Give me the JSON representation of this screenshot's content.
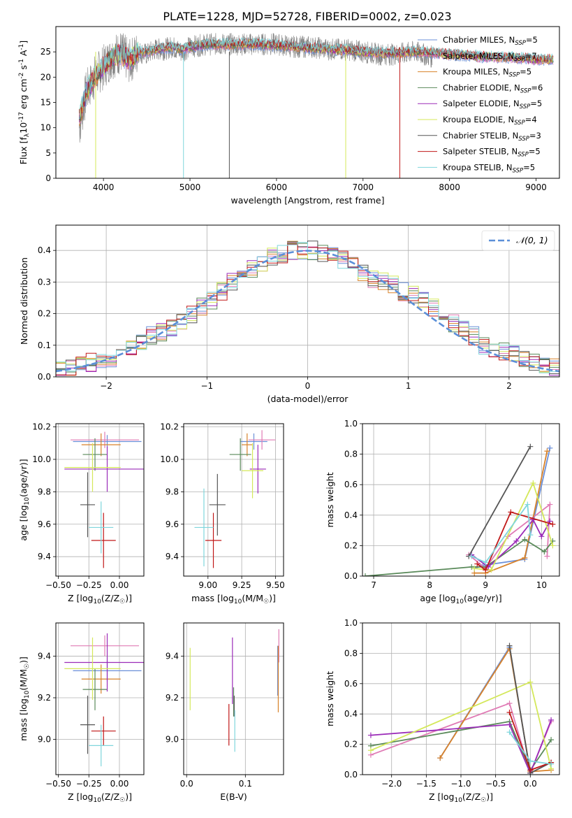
{
  "figure": {
    "title": "PLATE=1228, MJD=52728, FIBERID=0002, z=0.023"
  },
  "legend_series": [
    {
      "name": "Chabrier MILES, N$_{SSP}$=5",
      "base": "Chabrier MILES, N",
      "sub": "SSP",
      "tail": "=5",
      "color": "#6a8fd8"
    },
    {
      "name": "Salpeter MILES, N$_{SSP}$=7",
      "base": "Salpeter MILES, N",
      "sub": "SSP",
      "tail": "=7",
      "color": "#e07bb5"
    },
    {
      "name": "Kroupa MILES, N$_{SSP}$=5",
      "base": "Kroupa MILES, N",
      "sub": "SSP",
      "tail": "=5",
      "color": "#d8822a"
    },
    {
      "name": "Chabrier ELODIE, N$_{SSP}$=6",
      "base": "Chabrier ELODIE, N",
      "sub": "SSP",
      "tail": "=6",
      "color": "#5a8a5a"
    },
    {
      "name": "Salpeter ELODIE, N$_{SSP}$=5",
      "base": "Salpeter ELODIE, N",
      "sub": "SSP",
      "tail": "=5",
      "color": "#9b2bb8"
    },
    {
      "name": "Kroupa ELODIE, N$_{SSP}$=4",
      "base": "Kroupa ELODIE, N",
      "sub": "SSP",
      "tail": "=4",
      "color": "#d4e85a"
    },
    {
      "name": "Chabrier STELIB, N$_{SSP}$=3",
      "base": "Chabrier STELIB, N",
      "sub": "SSP",
      "tail": "=3",
      "color": "#555555"
    },
    {
      "name": "Salpeter STELIB, N$_{SSP}$=5",
      "base": "Salpeter STELIB, N",
      "sub": "SSP",
      "tail": "=5",
      "color": "#c01818"
    },
    {
      "name": "Kroupa STELIB, N$_{SSP}$=5",
      "base": "Kroupa STELIB, N",
      "sub": "SSP",
      "tail": "=5",
      "color": "#7fd6dc"
    }
  ],
  "chart_data": [
    {
      "id": "spectrum",
      "type": "line",
      "title": "PLATE=1228, MJD=52728, FIBERID=0002, z=0.023",
      "xlabel": "wavelength [Angstrom, rest frame]",
      "ylabel": "Flux [f$_\\lambda$10$^{-17}$ erg cm$^{-2}$ s$^{-1}$ A$^{-1}$]",
      "xlim": [
        3450,
        9270
      ],
      "ylim": [
        0,
        30
      ],
      "xticks": [
        4000,
        5000,
        6000,
        7000,
        8000,
        9000
      ],
      "yticks": [
        0,
        5,
        10,
        15,
        20,
        25
      ],
      "grid": false,
      "legend": "upper right",
      "data_color": "#808080",
      "observed": {
        "x": [
          3720,
          3800,
          3900,
          4000,
          4100,
          4200,
          4300,
          4400,
          4500,
          4600,
          4700,
          4800,
          4900,
          5000,
          5200,
          5400,
          5600,
          5800,
          6000,
          6200,
          6400,
          6600,
          6800,
          7000,
          7200,
          7400,
          7600,
          7800
        ],
        "y": [
          10,
          17,
          20,
          22,
          24,
          25,
          23,
          25,
          24.5,
          25.5,
          25.5,
          26,
          25,
          26,
          26.5,
          26.5,
          26.5,
          26.5,
          26.5,
          26,
          26,
          25.5,
          25.5,
          25,
          24.5,
          24.5,
          25,
          24
        ]
      },
      "model": {
        "x": [
          3720,
          3800,
          3900,
          4000,
          4100,
          4200,
          4300,
          4400,
          4500,
          4600,
          4700,
          4800,
          4900,
          5000,
          5200,
          5400,
          5600,
          5800,
          6000,
          6200,
          6400,
          6600,
          6800,
          7000,
          7200,
          7400,
          7600,
          7800,
          8000,
          8200,
          8400,
          8600,
          8800,
          9000,
          9200
        ],
        "y": [
          12,
          17,
          20,
          22,
          24,
          24.5,
          23.5,
          25,
          25,
          25.5,
          25.8,
          26,
          25.5,
          26,
          26.5,
          26.5,
          26.5,
          26.5,
          26.3,
          26,
          25.8,
          25.5,
          25.3,
          25,
          24.8,
          24.8,
          25,
          24.8,
          24.5,
          24.3,
          24,
          24,
          23.8,
          23.5,
          23.5
        ]
      },
      "drop_lines": [
        {
          "series": "Kroupa STELIB",
          "x": 4925
        },
        {
          "series": "Chabrier STELIB",
          "x": 5455
        },
        {
          "series": "Kroupa ELODIE",
          "x": 6800
        },
        {
          "series": "Salpeter STELIB",
          "x": 7425
        },
        {
          "series": "Kroupa ELODIE",
          "x": 3910
        }
      ]
    },
    {
      "id": "residuals",
      "type": "histogram",
      "xlabel": "(data-model)/error",
      "ylabel": "Normed distribution",
      "xlim": [
        -2.5,
        2.5
      ],
      "ylim": [
        0,
        0.48
      ],
      "xticks": [
        -2,
        -1,
        0,
        1,
        2
      ],
      "yticks": [
        0.0,
        0.1,
        0.2,
        0.3,
        0.4
      ],
      "grid": true,
      "legend": "upper right",
      "bin_edges": [
        -2.5,
        -2.4,
        -2.3,
        -2.2,
        -2.1,
        -2.0,
        -1.9,
        -1.8,
        -1.7,
        -1.6,
        -1.5,
        -1.4,
        -1.3,
        -1.2,
        -1.1,
        -1.0,
        -0.9,
        -0.8,
        -0.7,
        -0.6,
        -0.5,
        -0.4,
        -0.3,
        -0.2,
        -0.1,
        0.0,
        0.1,
        0.2,
        0.3,
        0.4,
        0.5,
        0.6,
        0.7,
        0.8,
        0.9,
        1.0,
        1.1,
        1.2,
        1.3,
        1.4,
        1.5,
        1.6,
        1.7,
        1.8,
        1.9,
        2.0,
        2.1,
        2.2,
        2.3,
        2.4,
        2.5
      ],
      "reference_curve": {
        "name": "$\\mathcal{N}(0,1)$",
        "label": "𝒩(0, 1)",
        "color": "#5b8fd8",
        "style": "dashed"
      },
      "hist_profile": [
        0.025,
        0.03,
        0.04,
        0.045,
        0.05,
        0.06,
        0.07,
        0.09,
        0.11,
        0.13,
        0.14,
        0.15,
        0.17,
        0.2,
        0.22,
        0.24,
        0.27,
        0.3,
        0.32,
        0.34,
        0.36,
        0.38,
        0.39,
        0.4,
        0.4,
        0.4,
        0.39,
        0.38,
        0.37,
        0.35,
        0.33,
        0.31,
        0.3,
        0.29,
        0.27,
        0.26,
        0.24,
        0.22,
        0.2,
        0.17,
        0.15,
        0.13,
        0.1,
        0.09,
        0.08,
        0.07,
        0.06,
        0.05,
        0.04,
        0.03
      ]
    },
    {
      "id": "age-vs-Z",
      "type": "scatter",
      "xlabel": "Z [log$_{10}$(Z/Z$_\\odot$)]",
      "ylabel": "age  [log$_{10}$(age/yr)]",
      "xlim": [
        -0.52,
        0.2
      ],
      "ylim": [
        9.28,
        10.22
      ],
      "xticks": [
        -0.5,
        -0.25,
        0.0
      ],
      "yticks": [
        9.4,
        9.6,
        9.8,
        10.0,
        10.2
      ],
      "grid": true,
      "points": [
        {
          "series": "Chabrier MILES",
          "x": -0.1,
          "y": 10.11,
          "xerr": 0.28,
          "yerr": 0.04
        },
        {
          "series": "Salpeter MILES",
          "x": -0.12,
          "y": 10.12,
          "xerr": 0.28,
          "yerr": 0.05
        },
        {
          "series": "Kroupa MILES",
          "x": -0.15,
          "y": 10.09,
          "xerr": 0.16,
          "yerr": 0.07
        },
        {
          "series": "Chabrier ELODIE",
          "x": -0.2,
          "y": 10.03,
          "xerr": 0.1,
          "yerr": 0.1
        },
        {
          "series": "Salpeter ELODIE",
          "x": -0.1,
          "y": 9.94,
          "xerr": 0.35,
          "yerr": 0.14
        },
        {
          "series": "Kroupa ELODIE",
          "x": -0.22,
          "y": 9.95,
          "xerr": 0.23,
          "yerr": 0.15
        },
        {
          "series": "Chabrier STELIB",
          "x": -0.26,
          "y": 9.72,
          "xerr": 0.06,
          "yerr": 0.2
        },
        {
          "series": "Salpeter STELIB",
          "x": -0.13,
          "y": 9.5,
          "xerr": 0.1,
          "yerr": 0.17
        },
        {
          "series": "Kroupa STELIB",
          "x": -0.15,
          "y": 9.58,
          "xerr": 0.1,
          "yerr": 0.16
        }
      ]
    },
    {
      "id": "age-vs-mass",
      "type": "scatter",
      "xlabel": "mass [log$_{10}$(M/M$_\\odot$)]",
      "ylabel": "",
      "xlim": [
        8.82,
        9.56
      ],
      "ylim": [
        9.28,
        10.22
      ],
      "xticks": [
        9.0,
        9.25,
        9.5
      ],
      "yticks": [
        9.4,
        9.6,
        9.8,
        10.0,
        10.2
      ],
      "grid": true,
      "points": [
        {
          "series": "Chabrier MILES",
          "x": 9.34,
          "y": 10.11,
          "xerr": 0.1,
          "yerr": 0.05
        },
        {
          "series": "Salpeter MILES",
          "x": 9.4,
          "y": 10.12,
          "xerr": 0.1,
          "yerr": 0.06
        },
        {
          "series": "Kroupa MILES",
          "x": 9.29,
          "y": 10.09,
          "xerr": 0.04,
          "yerr": 0.07
        },
        {
          "series": "Chabrier ELODIE",
          "x": 9.24,
          "y": 10.03,
          "xerr": 0.08,
          "yerr": 0.1
        },
        {
          "series": "Salpeter ELODIE",
          "x": 9.37,
          "y": 9.94,
          "xerr": 0.06,
          "yerr": 0.15
        },
        {
          "series": "Kroupa ELODIE",
          "x": 9.33,
          "y": 9.93,
          "xerr": 0.08,
          "yerr": 0.17
        },
        {
          "series": "Chabrier STELIB",
          "x": 9.07,
          "y": 9.72,
          "xerr": 0.06,
          "yerr": 0.19
        },
        {
          "series": "Salpeter STELIB",
          "x": 9.04,
          "y": 9.5,
          "xerr": 0.06,
          "yerr": 0.17
        },
        {
          "series": "Kroupa STELIB",
          "x": 8.97,
          "y": 9.58,
          "xerr": 0.07,
          "yerr": 0.24
        }
      ]
    },
    {
      "id": "weight-vs-age",
      "type": "line",
      "xlabel": "age  [log$_{10}$(age/yr)]",
      "ylabel": "mass weight",
      "xlim": [
        6.8,
        10.32
      ],
      "ylim": [
        0,
        1.0
      ],
      "xticks": [
        7,
        8,
        9,
        10
      ],
      "yticks": [
        0.0,
        0.2,
        0.4,
        0.6,
        0.8,
        1.0
      ],
      "grid": true,
      "series": [
        {
          "name": "Chabrier MILES",
          "x": [
            8.8,
            8.95,
            9.7,
            10.15
          ],
          "y": [
            0.05,
            0.07,
            0.11,
            0.84
          ]
        },
        {
          "name": "Salpeter MILES",
          "x": [
            8.7,
            9.0,
            9.4,
            10.15,
            10.1
          ],
          "y": [
            0.14,
            0.05,
            0.26,
            0.47,
            0.13
          ]
        },
        {
          "name": "Kroupa MILES",
          "x": [
            8.8,
            9.0,
            9.7,
            10.1
          ],
          "y": [
            0.02,
            0.02,
            0.12,
            0.82
          ]
        },
        {
          "name": "Chabrier ELODIE",
          "x": [
            6.85,
            8.75,
            9.0,
            9.7,
            10.05,
            10.2
          ],
          "y": [
            0.0,
            0.06,
            0.06,
            0.24,
            0.16,
            0.23
          ]
        },
        {
          "name": "Salpeter ELODIE",
          "x": [
            8.75,
            9.05,
            9.55,
            9.85,
            10.0,
            10.15
          ],
          "y": [
            0.14,
            0.06,
            0.23,
            0.37,
            0.26,
            0.36
          ]
        },
        {
          "name": "Kroupa ELODIE",
          "x": [
            8.8,
            9.1,
            9.85,
            10.2
          ],
          "y": [
            0.05,
            0.04,
            0.61,
            0.2
          ]
        },
        {
          "name": "Chabrier STELIB",
          "x": [
            8.7,
            9.8
          ],
          "y": [
            0.13,
            0.85
          ]
        },
        {
          "name": "Salpeter STELIB",
          "x": [
            8.85,
            9.0,
            9.45,
            10.2
          ],
          "y": [
            0.08,
            0.04,
            0.42,
            0.34
          ]
        },
        {
          "name": "Kroupa STELIB",
          "x": [
            8.75,
            9.0,
            9.75,
            9.8
          ],
          "y": [
            0.13,
            0.09,
            0.47,
            0.27
          ]
        }
      ]
    },
    {
      "id": "mass-vs-Z",
      "type": "scatter",
      "xlabel": "Z [log$_{10}$(Z/Z$_\\odot$)]",
      "ylabel": "mass [log$_{10}$(M/M$_\\odot$)]",
      "xlim": [
        -0.52,
        0.2
      ],
      "ylim": [
        8.83,
        9.56
      ],
      "xticks": [
        -0.5,
        -0.25,
        0.0
      ],
      "yticks": [
        9.0,
        9.2,
        9.4
      ],
      "grid": true,
      "points": [
        {
          "series": "Chabrier MILES",
          "x": -0.1,
          "y": 9.33,
          "xerr": 0.28,
          "yerr": 0.05
        },
        {
          "series": "Salpeter MILES",
          "x": -0.12,
          "y": 9.45,
          "xerr": 0.28,
          "yerr": 0.05
        },
        {
          "series": "Kroupa MILES",
          "x": -0.15,
          "y": 9.29,
          "xerr": 0.16,
          "yerr": 0.07
        },
        {
          "series": "Chabrier ELODIE",
          "x": -0.2,
          "y": 9.24,
          "xerr": 0.1,
          "yerr": 0.1
        },
        {
          "series": "Salpeter ELODIE",
          "x": -0.1,
          "y": 9.37,
          "xerr": 0.35,
          "yerr": 0.14
        },
        {
          "series": "Kroupa ELODIE",
          "x": -0.22,
          "y": 9.34,
          "xerr": 0.23,
          "yerr": 0.15
        },
        {
          "series": "Chabrier STELIB",
          "x": -0.26,
          "y": 9.07,
          "xerr": 0.06,
          "yerr": 0.14
        },
        {
          "series": "Salpeter STELIB",
          "x": -0.13,
          "y": 9.04,
          "xerr": 0.1,
          "yerr": 0.07
        },
        {
          "series": "Kroupa STELIB",
          "x": -0.15,
          "y": 8.97,
          "xerr": 0.1,
          "yerr": 0.1
        }
      ]
    },
    {
      "id": "mass-vs-ebv",
      "type": "scatter",
      "xlabel": "E(B-V)",
      "ylabel": "",
      "xlim": [
        -0.005,
        0.165
      ],
      "ylim": [
        8.83,
        9.56
      ],
      "xticks": [
        0.0,
        0.1
      ],
      "yticks": [
        9.0,
        9.2,
        9.4
      ],
      "grid": true,
      "points": [
        {
          "series": "Chabrier MILES",
          "x": 0.155,
          "y": 9.33,
          "xerr": 0,
          "yerr": 0.12
        },
        {
          "series": "Salpeter MILES",
          "x": 0.157,
          "y": 9.45,
          "xerr": 0,
          "yerr": 0.08
        },
        {
          "series": "Kroupa MILES",
          "x": 0.156,
          "y": 9.29,
          "xerr": 0,
          "yerr": 0.16
        },
        {
          "series": "Chabrier ELODIE",
          "x": 0.08,
          "y": 9.18,
          "xerr": 0,
          "yerr": 0.07
        },
        {
          "series": "Salpeter ELODIE",
          "x": 0.078,
          "y": 9.33,
          "xerr": 0,
          "yerr": 0.16
        },
        {
          "series": "Kroupa ELODIE",
          "x": 0.006,
          "y": 9.29,
          "xerr": 0,
          "yerr": 0.15
        },
        {
          "series": "Chabrier STELIB",
          "x": 0.081,
          "y": 9.16,
          "xerr": 0,
          "yerr": 0.05
        },
        {
          "series": "Salpeter STELIB",
          "x": 0.072,
          "y": 9.07,
          "xerr": 0,
          "yerr": 0.1
        },
        {
          "series": "Kroupa STELIB",
          "x": 0.082,
          "y": 9.04,
          "xerr": 0,
          "yerr": 0.1
        }
      ]
    },
    {
      "id": "weight-vs-Z",
      "type": "line",
      "xlabel": "Z [log$_{10}$(Z/Z$_\\odot$)]",
      "ylabel": "mass weight",
      "xlim": [
        -2.42,
        0.42
      ],
      "ylim": [
        0,
        1.0
      ],
      "xticks": [
        -2.0,
        -1.5,
        -1.0,
        -0.5,
        0.0
      ],
      "yticks": [
        0.0,
        0.2,
        0.4,
        0.6,
        0.8,
        1.0
      ],
      "grid": true,
      "series": [
        {
          "name": "Chabrier MILES",
          "x": [
            -1.3,
            -0.3,
            0.0
          ],
          "y": [
            0.11,
            0.84,
            0.01
          ]
        },
        {
          "name": "Salpeter MILES",
          "x": [
            -2.3,
            -0.3,
            0.0,
            0.3
          ],
          "y": [
            0.13,
            0.47,
            0.01,
            0.35
          ]
        },
        {
          "name": "Kroupa MILES",
          "x": [
            -1.3,
            -0.3,
            0.0,
            0.3
          ],
          "y": [
            0.11,
            0.83,
            0.02,
            0.03
          ]
        },
        {
          "name": "Chabrier ELODIE",
          "x": [
            -2.3,
            -0.3,
            0.0,
            0.3
          ],
          "y": [
            0.19,
            0.35,
            0.03,
            0.23
          ]
        },
        {
          "name": "Salpeter ELODIE",
          "x": [
            -2.3,
            -0.3,
            0.0,
            0.3
          ],
          "y": [
            0.26,
            0.33,
            0.01,
            0.36
          ]
        },
        {
          "name": "Kroupa ELODIE",
          "x": [
            -2.3,
            0.0,
            0.3
          ],
          "y": [
            0.16,
            0.61,
            0.04
          ]
        },
        {
          "name": "Chabrier STELIB",
          "x": [
            -0.3,
            0.0,
            0.3
          ],
          "y": [
            0.85,
            0.01,
            0.08
          ]
        },
        {
          "name": "Salpeter STELIB",
          "x": [
            -0.3,
            0.0,
            0.3
          ],
          "y": [
            0.41,
            0.03,
            0.08
          ]
        },
        {
          "name": "Kroupa STELIB",
          "x": [
            -0.3,
            0.0,
            0.3
          ],
          "y": [
            0.28,
            0.09,
            0.07
          ]
        }
      ]
    }
  ]
}
